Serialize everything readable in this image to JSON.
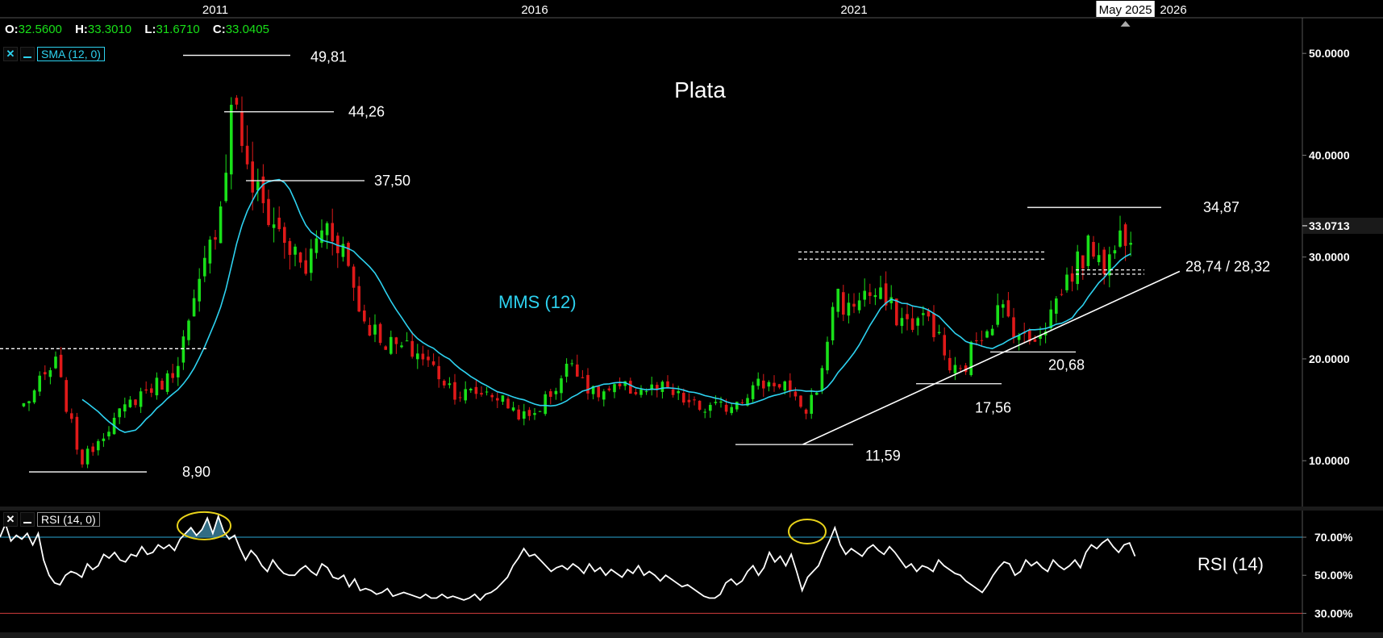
{
  "ohlc": {
    "open_label": "O:",
    "open": "32.5600",
    "high_label": "H:",
    "high": "33.3010",
    "low_label": "L:",
    "low": "31.6710",
    "close_label": "C:",
    "close": "33.0405"
  },
  "indicators": {
    "sma_tag": "SMA (12, 0)",
    "rsi_tag": "RSI (14, 0)",
    "close_icon": "x",
    "minimize_icon": "minus"
  },
  "colors": {
    "background": "#000000",
    "up_candle": "#19e019",
    "down_candle": "#e01919",
    "sma": "#2dd2f0",
    "rsi_line": "#ffffff",
    "rsi_upper": "#2aa7d6",
    "rsi_lower": "#d23c3c",
    "highlight_ellipse": "#e8d21a",
    "price_tag_bg": "#1a1a1a"
  },
  "chart_data": [
    {
      "type": "candlestick",
      "title": "Plata",
      "x_ticks": [
        "2011",
        "2016",
        "2021",
        "May 2025",
        "2026"
      ],
      "y_ticks": [
        "10.0000",
        "20.0000",
        "30.0000",
        "40.0000",
        "50.0000"
      ],
      "ylim": [
        5.5,
        53.5
      ],
      "last_price_label": "33.0713",
      "last_price": 33.0713,
      "series": [
        {
          "name": "MMS (12)",
          "kind": "sma",
          "period": 12
        }
      ],
      "close_anchors": [
        {
          "t": 2008.0,
          "c": 15.5
        },
        {
          "t": 2008.5,
          "c": 19.5
        },
        {
          "t": 2008.9,
          "c": 9.8
        },
        {
          "t": 2009.3,
          "c": 13.2
        },
        {
          "t": 2009.8,
          "c": 16.5
        },
        {
          "t": 2010.3,
          "c": 18.2
        },
        {
          "t": 2010.6,
          "c": 23.5
        },
        {
          "t": 2010.9,
          "c": 30.5
        },
        {
          "t": 2011.1,
          "c": 36.0
        },
        {
          "t": 2011.3,
          "c": 47.0
        },
        {
          "t": 2011.5,
          "c": 38.0
        },
        {
          "t": 2011.8,
          "c": 34.5
        },
        {
          "t": 2012.1,
          "c": 31.5
        },
        {
          "t": 2012.4,
          "c": 28.5
        },
        {
          "t": 2012.7,
          "c": 33.5
        },
        {
          "t": 2013.0,
          "c": 31.0
        },
        {
          "t": 2013.3,
          "c": 24.0
        },
        {
          "t": 2013.7,
          "c": 21.5
        },
        {
          "t": 2014.2,
          "c": 20.5
        },
        {
          "t": 2014.8,
          "c": 16.5
        },
        {
          "t": 2015.3,
          "c": 16.8
        },
        {
          "t": 2015.9,
          "c": 14.0
        },
        {
          "t": 2016.3,
          "c": 17.0
        },
        {
          "t": 2016.6,
          "c": 20.0
        },
        {
          "t": 2016.9,
          "c": 16.5
        },
        {
          "t": 2017.4,
          "c": 17.0
        },
        {
          "t": 2018.0,
          "c": 17.0
        },
        {
          "t": 2018.6,
          "c": 15.0
        },
        {
          "t": 2019.0,
          "c": 15.3
        },
        {
          "t": 2019.5,
          "c": 17.5
        },
        {
          "t": 2019.9,
          "c": 17.8
        },
        {
          "t": 2020.2,
          "c": 14.3
        },
        {
          "t": 2020.5,
          "c": 18.5
        },
        {
          "t": 2020.7,
          "c": 27.0
        },
        {
          "t": 2020.9,
          "c": 24.5
        },
        {
          "t": 2021.1,
          "c": 26.5
        },
        {
          "t": 2021.4,
          "c": 26.0
        },
        {
          "t": 2021.8,
          "c": 23.5
        },
        {
          "t": 2022.2,
          "c": 24.0
        },
        {
          "t": 2022.5,
          "c": 19.0
        },
        {
          "t": 2022.7,
          "c": 18.5
        },
        {
          "t": 2022.9,
          "c": 22.0
        },
        {
          "t": 2023.3,
          "c": 25.0
        },
        {
          "t": 2023.7,
          "c": 21.5
        },
        {
          "t": 2024.0,
          "c": 23.5
        },
        {
          "t": 2024.3,
          "c": 27.5
        },
        {
          "t": 2024.5,
          "c": 29.5
        },
        {
          "t": 2024.8,
          "c": 31.5
        },
        {
          "t": 2024.95,
          "c": 29.0
        },
        {
          "t": 2025.2,
          "c": 32.5
        },
        {
          "t": 2025.4,
          "c": 33.0
        }
      ],
      "annotations": [
        {
          "text": "49,81",
          "value": 49.81
        },
        {
          "text": "44,26",
          "value": 44.26
        },
        {
          "text": "37,50",
          "value": 37.5
        },
        {
          "text": "34,87",
          "value": 34.87
        },
        {
          "text": "28,74 / 28,32",
          "value": 28.74,
          "value2": 28.32
        },
        {
          "text": "20,68",
          "value": 20.68
        },
        {
          "text": "17,56",
          "value": 17.56
        },
        {
          "text": "11,59",
          "value": 11.59
        },
        {
          "text": "8,90",
          "value": 8.9
        },
        {
          "text": "MMS (12)"
        }
      ]
    },
    {
      "type": "line",
      "title": "RSI (14)",
      "y_ticks": [
        "30.00%",
        "50.00%",
        "70.00%"
      ],
      "ylim": [
        20,
        84
      ],
      "levels": [
        70,
        30
      ],
      "values": [
        70,
        77,
        68,
        71,
        69,
        72,
        66,
        72,
        58,
        50,
        46,
        45,
        50,
        52,
        51,
        49,
        56,
        53,
        55,
        61,
        59,
        62,
        58,
        57,
        61,
        60,
        65,
        61,
        62,
        66,
        64,
        66,
        63,
        69,
        72,
        75,
        71,
        74,
        80,
        72,
        81,
        73,
        69,
        71,
        64,
        58,
        63,
        60,
        55,
        52,
        58,
        54,
        51,
        50,
        50,
        53,
        55,
        52,
        50,
        56,
        54,
        49,
        48,
        50,
        44,
        48,
        42,
        43,
        42,
        40,
        41,
        43,
        39,
        40,
        41,
        40,
        39,
        38,
        40,
        38,
        38,
        40,
        38,
        39,
        38,
        37,
        38,
        40,
        37,
        40,
        41,
        43,
        46,
        49,
        55,
        59,
        64,
        60,
        61,
        58,
        55,
        52,
        54,
        55,
        53,
        56,
        54,
        51,
        56,
        52,
        54,
        50,
        53,
        51,
        49,
        53,
        51,
        55,
        50,
        52,
        50,
        47,
        50,
        48,
        46,
        44,
        45,
        43,
        41,
        39,
        38,
        38,
        40,
        46,
        48,
        45,
        47,
        52,
        55,
        50,
        54,
        62,
        57,
        60,
        55,
        61,
        52,
        42,
        49,
        52,
        55,
        62,
        68,
        75,
        66,
        61,
        64,
        62,
        60,
        64,
        66,
        63,
        61,
        65,
        62,
        58,
        54,
        56,
        52,
        55,
        54,
        52,
        58,
        55,
        53,
        51,
        50,
        47,
        45,
        43,
        41,
        45,
        50,
        54,
        57,
        56,
        50,
        52,
        58,
        55,
        57,
        54,
        52,
        58,
        55,
        53,
        55,
        58,
        54,
        62,
        66,
        64,
        67,
        69,
        65,
        62,
        66,
        67,
        60
      ],
      "series": [
        {
          "name": "RSI (14)"
        }
      ]
    }
  ]
}
